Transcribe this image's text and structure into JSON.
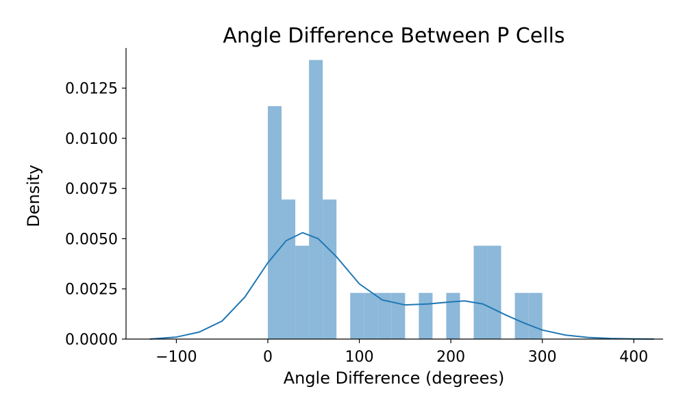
{
  "chart_data": {
    "type": "histogram",
    "title": "Angle Difference Between P Cells",
    "xlabel": "Angle Difference (degrees)",
    "ylabel": "Density",
    "xlim": [
      -155,
      432
    ],
    "ylim": [
      0,
      0.0145
    ],
    "x_ticks": [
      {
        "value": -100,
        "label": "−100"
      },
      {
        "value": 0,
        "label": "0"
      },
      {
        "value": 100,
        "label": "100"
      },
      {
        "value": 200,
        "label": "200"
      },
      {
        "value": 300,
        "label": "300"
      },
      {
        "value": 400,
        "label": "400"
      }
    ],
    "y_ticks": [
      {
        "value": 0,
        "label": "0.0000"
      },
      {
        "value": 0.0025,
        "label": "0.0025"
      },
      {
        "value": 0.005,
        "label": "0.0050"
      },
      {
        "value": 0.0075,
        "label": "0.0075"
      },
      {
        "value": 0.01,
        "label": "0.0100"
      },
      {
        "value": 0.0125,
        "label": "0.0125"
      }
    ],
    "grid": false,
    "bar_color": "#8cb8d9",
    "line_color": "#1f77b4",
    "bins": [
      {
        "x0": 0,
        "x1": 15,
        "density": 0.0116
      },
      {
        "x0": 15,
        "x1": 30,
        "density": 0.00695
      },
      {
        "x0": 30,
        "x1": 45,
        "density": 0.00465
      },
      {
        "x0": 45,
        "x1": 60,
        "density": 0.0139
      },
      {
        "x0": 60,
        "x1": 75,
        "density": 0.00695
      },
      {
        "x0": 75,
        "x1": 90,
        "density": 0
      },
      {
        "x0": 90,
        "x1": 105,
        "density": 0.0023
      },
      {
        "x0": 105,
        "x1": 120,
        "density": 0.0023
      },
      {
        "x0": 120,
        "x1": 135,
        "density": 0.0023
      },
      {
        "x0": 135,
        "x1": 150,
        "density": 0.0023
      },
      {
        "x0": 150,
        "x1": 165,
        "density": 0
      },
      {
        "x0": 165,
        "x1": 180,
        "density": 0.0023
      },
      {
        "x0": 180,
        "x1": 195,
        "density": 0
      },
      {
        "x0": 195,
        "x1": 210,
        "density": 0.0023
      },
      {
        "x0": 210,
        "x1": 225,
        "density": 0
      },
      {
        "x0": 225,
        "x1": 240,
        "density": 0.00465
      },
      {
        "x0": 240,
        "x1": 255,
        "density": 0.00465
      },
      {
        "x0": 255,
        "x1": 270,
        "density": 0
      },
      {
        "x0": 270,
        "x1": 285,
        "density": 0.0023
      },
      {
        "x0": 285,
        "x1": 300,
        "density": 0.0023
      }
    ],
    "kde": {
      "x": [
        -129,
        -100,
        -75,
        -50,
        -25,
        0,
        20,
        38,
        55,
        75,
        100,
        125,
        150,
        175,
        200,
        215,
        235,
        260,
        280,
        300,
        325,
        350,
        375,
        400,
        422
      ],
      "y": [
        0,
        0.0001,
        0.00035,
        0.0009,
        0.0021,
        0.0038,
        0.0049,
        0.0053,
        0.005,
        0.0041,
        0.00275,
        0.00195,
        0.0017,
        0.00175,
        0.00185,
        0.0019,
        0.00175,
        0.0012,
        0.0008,
        0.00045,
        0.0002,
        8e-05,
        3e-05,
        1e-05,
        0
      ]
    }
  }
}
